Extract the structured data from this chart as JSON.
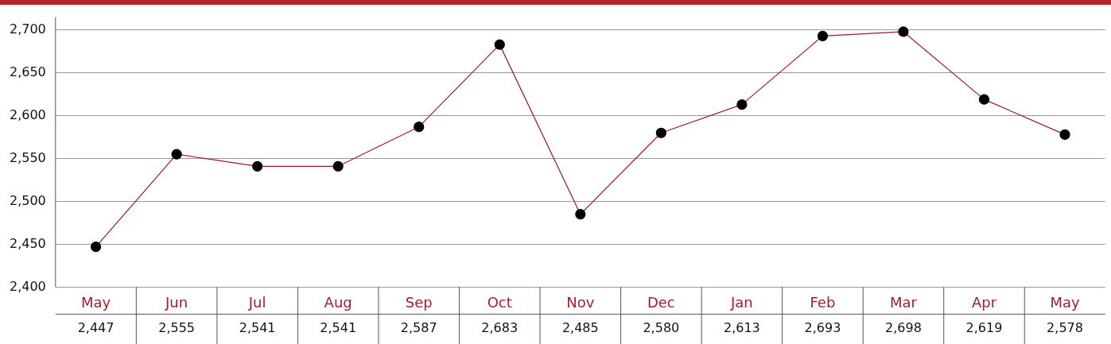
{
  "chart_data": {
    "type": "line",
    "categories": [
      "May",
      "Jun",
      "Jul",
      "Aug",
      "Sep",
      "Oct",
      "Nov",
      "Dec",
      "Jan",
      "Feb",
      "Mar",
      "Apr",
      "May"
    ],
    "series": [
      {
        "color": "#9b1c24",
        "values": [
          2447,
          2555,
          2541,
          2541,
          2587,
          2683,
          2485,
          2580,
          2613,
          2693,
          2698,
          2619,
          2578
        ],
        "value_labels": [
          "2,447",
          "2,555",
          "2,541",
          "2,541",
          "2,587",
          "2,683",
          "2,485",
          "2,580",
          "2,613",
          "2,693",
          "2,698",
          "2,619",
          "2,578"
        ]
      }
    ],
    "ylim": [
      2400,
      2715
    ],
    "yticks": [
      {
        "value": 2400,
        "label": "2,400"
      },
      {
        "value": 2450,
        "label": "2,450"
      },
      {
        "value": 2500,
        "label": "2,500"
      },
      {
        "value": 2550,
        "label": "2,550"
      },
      {
        "value": 2600,
        "label": "2,600"
      },
      {
        "value": 2650,
        "label": "2,650"
      },
      {
        "value": 2700,
        "label": "2,700"
      }
    ],
    "grid": "y",
    "marker": "circle",
    "line_style": "solid"
  }
}
